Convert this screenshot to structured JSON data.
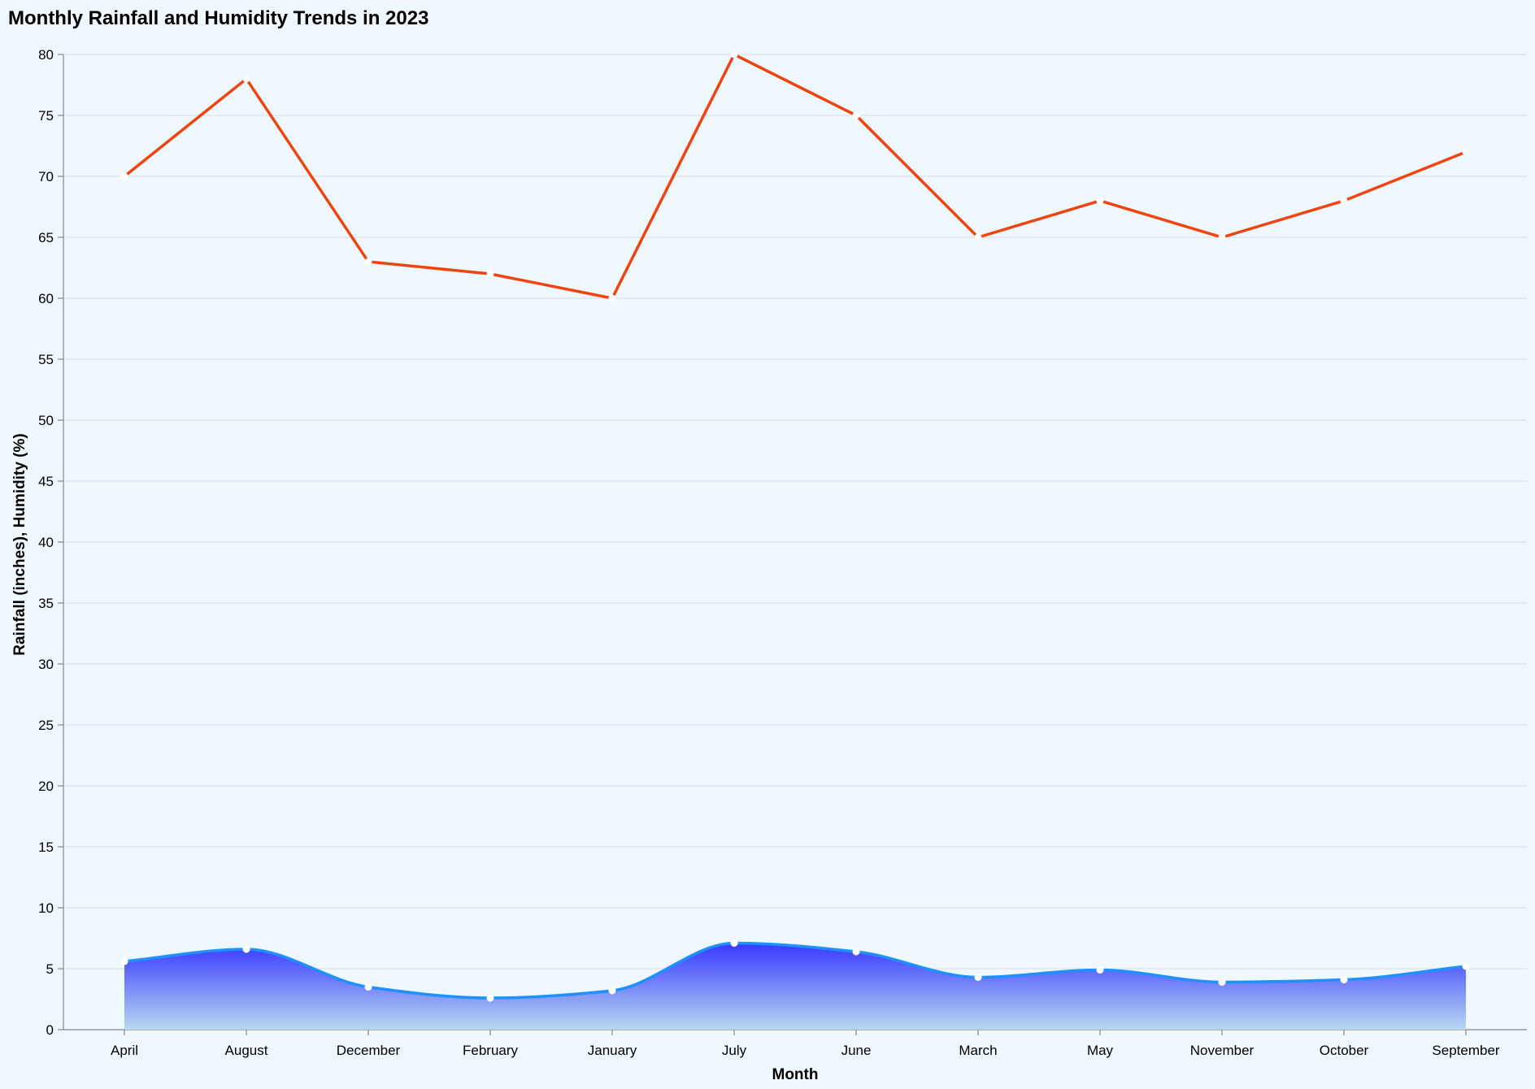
{
  "chart_data": {
    "type": "area",
    "title": "Monthly Rainfall and Humidity Trends in 2023",
    "xlabel": "Month",
    "ylabel": "Rainfall (inches), Humidity (%)",
    "ylim": [
      0,
      80
    ],
    "yticks": [
      0,
      5,
      10,
      15,
      20,
      25,
      30,
      35,
      40,
      45,
      50,
      55,
      60,
      65,
      70,
      75,
      80
    ],
    "grid": true,
    "categories": [
      "April",
      "August",
      "December",
      "February",
      "January",
      "July",
      "June",
      "March",
      "May",
      "November",
      "October",
      "September"
    ],
    "series": [
      {
        "key": "rainfall",
        "mark": "area",
        "values": [
          5.6,
          6.6,
          3.5,
          2.6,
          3.2,
          7.1,
          6.4,
          4.3,
          4.9,
          3.9,
          4.1,
          5.2
        ],
        "color": "#1e90ff",
        "fill_top": "#3838ff",
        "fill_bottom": "#b8d8f0"
      },
      {
        "key": "humidity",
        "mark": "line",
        "values": [
          70,
          78,
          63,
          62,
          60,
          80,
          75,
          65,
          68,
          65,
          68,
          72
        ],
        "color": "#f0440f"
      }
    ],
    "point_color": "#ffffff",
    "background": "#f0f8ff"
  }
}
